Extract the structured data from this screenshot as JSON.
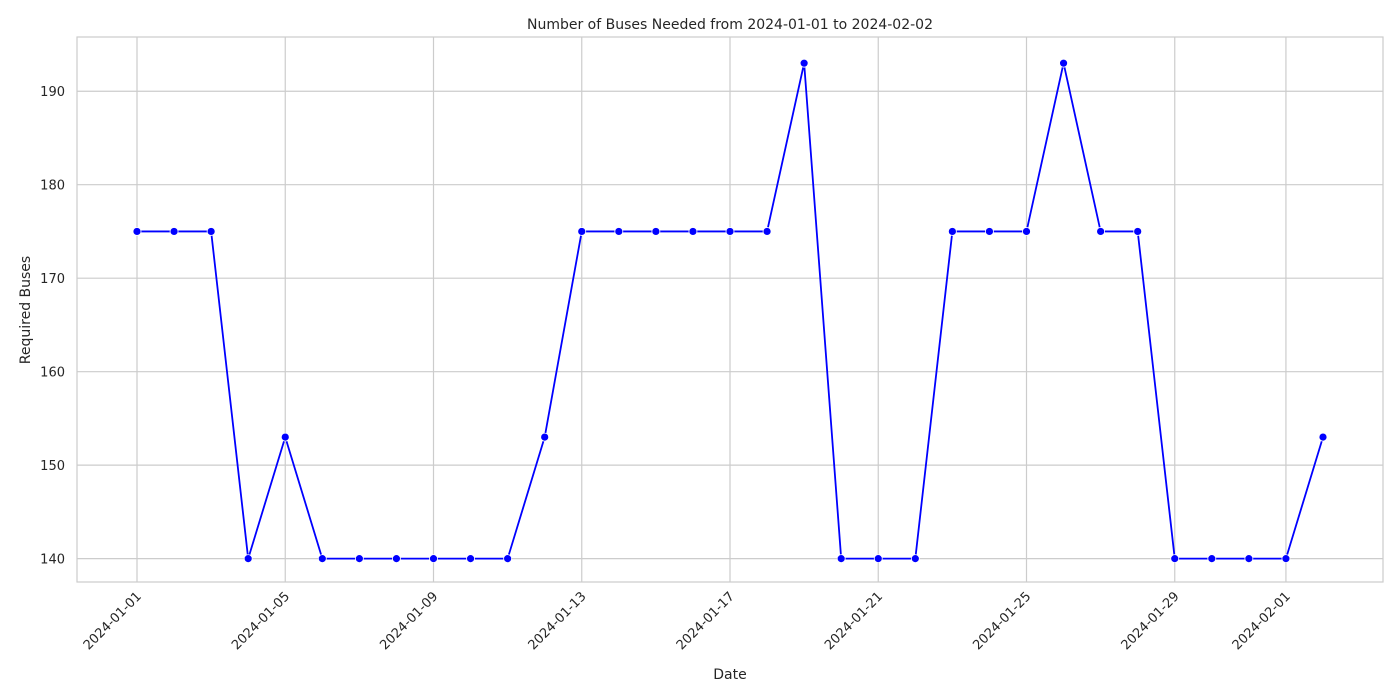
{
  "chart_data": {
    "type": "line",
    "title": "Number of Buses Needed from 2024-01-01 to 2024-02-02",
    "xlabel": "Date",
    "ylabel": "Required Buses",
    "x": [
      "2024-01-01",
      "2024-01-02",
      "2024-01-03",
      "2024-01-04",
      "2024-01-05",
      "2024-01-06",
      "2024-01-07",
      "2024-01-08",
      "2024-01-09",
      "2024-01-10",
      "2024-01-11",
      "2024-01-12",
      "2024-01-13",
      "2024-01-14",
      "2024-01-15",
      "2024-01-16",
      "2024-01-17",
      "2024-01-18",
      "2024-01-19",
      "2024-01-20",
      "2024-01-21",
      "2024-01-22",
      "2024-01-23",
      "2024-01-24",
      "2024-01-25",
      "2024-01-26",
      "2024-01-27",
      "2024-01-28",
      "2024-01-29",
      "2024-01-30",
      "2024-01-31",
      "2024-02-01",
      "2024-02-02"
    ],
    "values": [
      175,
      175,
      175,
      140,
      153,
      140,
      140,
      140,
      140,
      140,
      140,
      153,
      175,
      175,
      175,
      175,
      175,
      175,
      193,
      140,
      140,
      140,
      175,
      175,
      175,
      193,
      175,
      175,
      140,
      140,
      140,
      140,
      153
    ],
    "x_ticks": [
      "2024-01-01",
      "2024-01-05",
      "2024-01-09",
      "2024-01-13",
      "2024-01-17",
      "2024-01-21",
      "2024-01-25",
      "2024-01-29",
      "2024-02-01"
    ],
    "y_ticks": [
      140,
      150,
      160,
      170,
      180,
      190
    ],
    "ylim": [
      137.5,
      195.8
    ],
    "grid": true,
    "legend": "none",
    "line_color": "#0000ff",
    "marker_color": "#0000ff",
    "grid_color": "#cccccc",
    "frame_color": "#cccccc"
  }
}
